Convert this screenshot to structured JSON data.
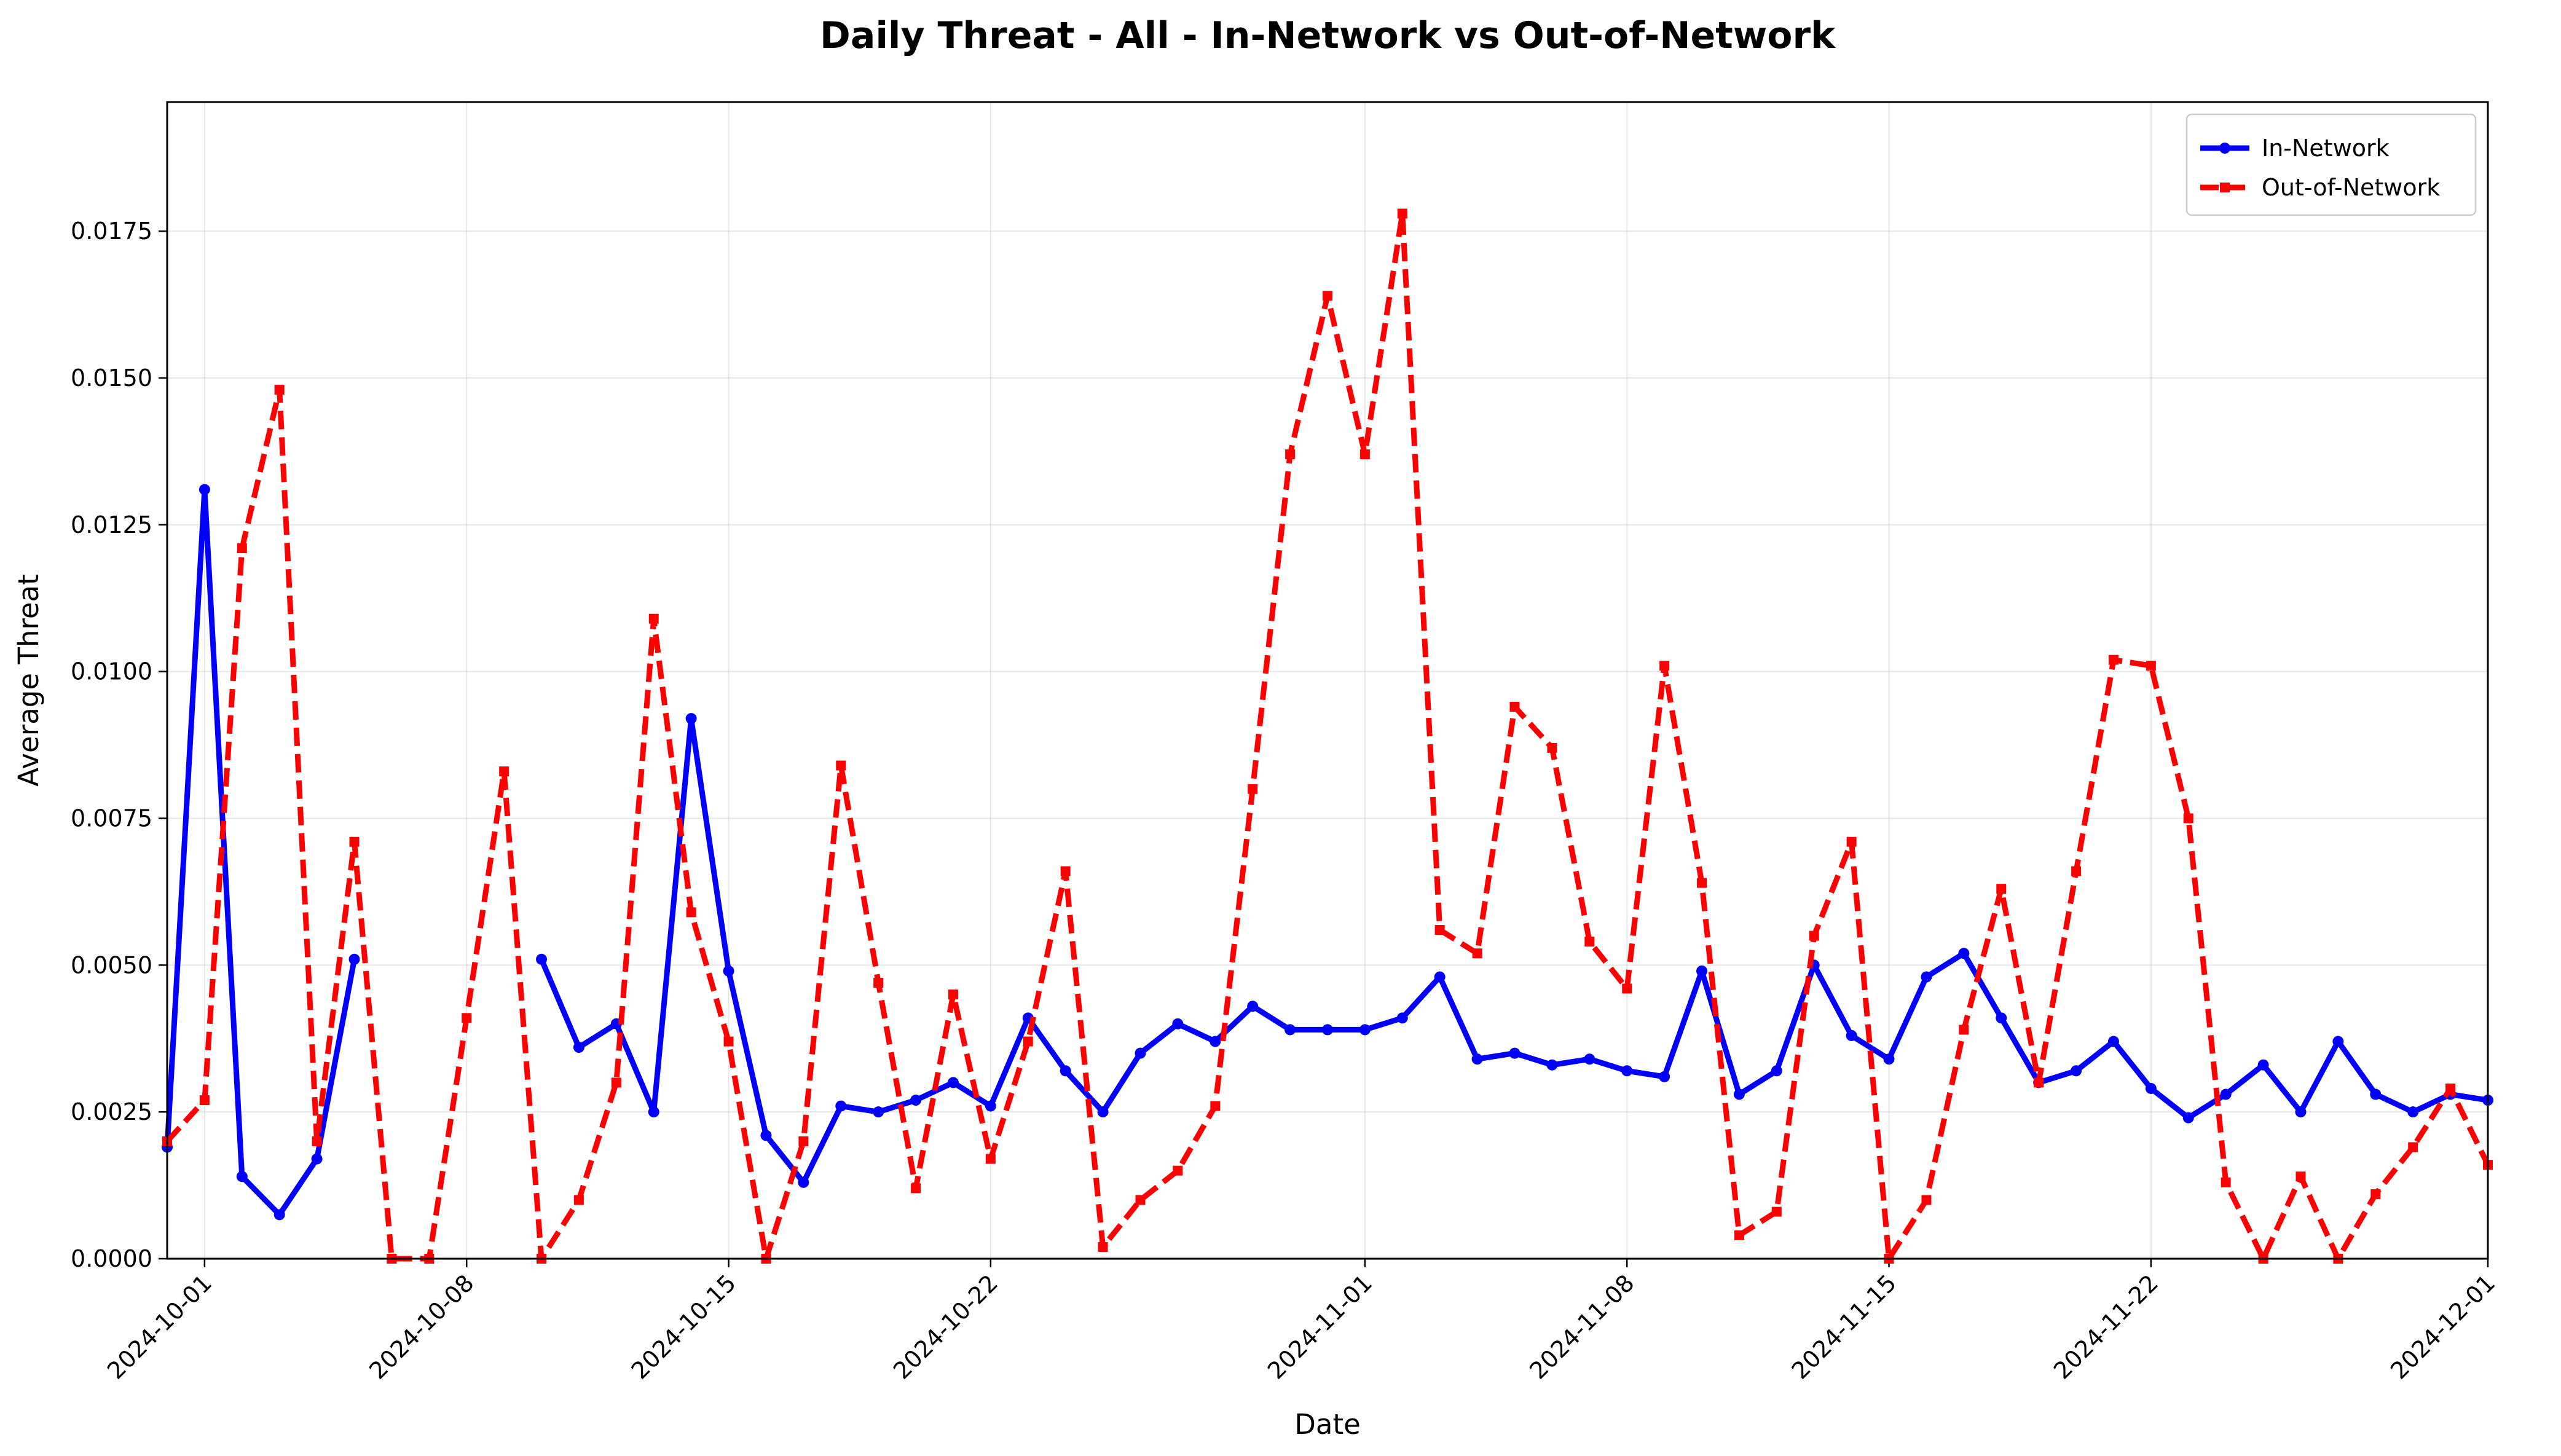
{
  "chart_data": {
    "type": "line",
    "title": "Daily Threat - All - In-Network vs Out-of-Network",
    "xlabel": "Date",
    "ylabel": "Average Threat",
    "x_start": "2024-09-30",
    "x_range": [
      "2024-09-30",
      "2024-12-01"
    ],
    "ylim": [
      0,
      0.0197
    ],
    "x_ticks": [
      "2024-10-01",
      "2024-10-08",
      "2024-10-15",
      "2024-10-22",
      "2024-11-01",
      "2024-11-08",
      "2024-11-15",
      "2024-11-22",
      "2024-12-01"
    ],
    "y_ticks": [
      "0.0000",
      "0.0025",
      "0.0050",
      "0.0075",
      "0.0100",
      "0.0125",
      "0.0150",
      "0.0175"
    ],
    "grid": true,
    "legend_position": "top-right",
    "series": [
      {
        "name": "In-Network",
        "color": "#0000ff",
        "line_style": "solid",
        "marker": "circle",
        "values": [
          0.0019,
          0.0131,
          0.0014,
          0.00075,
          0.0017,
          0.0051,
          null,
          null,
          null,
          null,
          0.0051,
          0.0036,
          0.004,
          0.0025,
          0.0092,
          0.0049,
          0.0021,
          0.0013,
          0.0026,
          0.0025,
          0.0027,
          0.003,
          0.0026,
          0.0041,
          0.0032,
          0.0025,
          0.0035,
          0.004,
          0.0037,
          0.0043,
          0.0039,
          0.0039,
          0.0039,
          0.0041,
          0.0048,
          0.0034,
          0.0035,
          0.0033,
          0.0034,
          0.0032,
          0.0031,
          0.0049,
          0.0028,
          0.0032,
          0.005,
          0.0038,
          0.0034,
          0.0048,
          0.0052,
          0.0041,
          0.003,
          0.0032,
          0.0037,
          0.0029,
          0.0024,
          0.0028,
          0.0033,
          0.0025,
          0.0037,
          0.0028,
          0.0025,
          0.0028,
          0.0027
        ]
      },
      {
        "name": "Out-of-Network",
        "color": "#ff0000",
        "line_style": "dashed",
        "marker": "square",
        "values": [
          0.002,
          0.0027,
          0.0121,
          0.0148,
          0.002,
          0.0071,
          0.0,
          0.0,
          0.0041,
          0.0083,
          0.0,
          0.001,
          0.003,
          0.0109,
          0.0059,
          0.0037,
          0.0,
          0.002,
          0.0084,
          0.0047,
          0.0012,
          0.0045,
          0.0017,
          0.0037,
          0.0066,
          0.0002,
          0.001,
          0.0015,
          0.0026,
          0.008,
          0.0137,
          0.0164,
          0.0137,
          0.0178,
          0.0056,
          0.0052,
          0.0094,
          0.0087,
          0.0054,
          0.0046,
          0.0101,
          0.0064,
          0.0004,
          0.0008,
          0.0055,
          0.0071,
          0.0,
          0.001,
          0.0039,
          0.0063,
          0.003,
          0.0066,
          0.0102,
          0.0101,
          0.0075,
          0.0013,
          0.0,
          0.0014,
          0.0,
          0.0011,
          0.0019,
          0.0029,
          0.0016
        ]
      }
    ]
  }
}
